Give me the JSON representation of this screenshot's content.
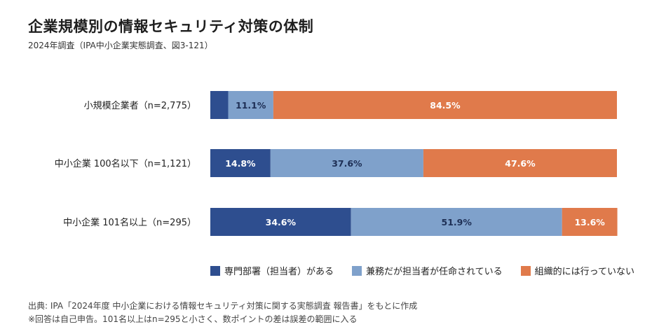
{
  "title": "企業規模別の情報セキュリティ対策の体制",
  "subtitle": "2024年調査（IPA中小企業実態調査、図3-121）",
  "colors": {
    "dedicated": "#2e4e8f",
    "concurrent": "#7fa1cb",
    "none": "#e07a4b"
  },
  "chart_data": {
    "type": "bar",
    "orientation": "horizontal-stacked-100",
    "categories": [
      "小規模企業者（n=2,775）",
      "中小企業 100名以下（n=1,121）",
      "中小企業 101名以上（n=295）"
    ],
    "series": [
      {
        "name": "専門部署（担当者）がある",
        "values": [
          4.4,
          14.8,
          34.6
        ],
        "labels": [
          "",
          "14.8%",
          "34.6%"
        ]
      },
      {
        "name": "兼務だが担当者が任命されている",
        "values": [
          11.1,
          37.6,
          51.9
        ],
        "labels": [
          "11.1%",
          "37.6%",
          "51.9%"
        ]
      },
      {
        "name": "組織的には行っていない",
        "values": [
          84.5,
          47.6,
          13.6
        ],
        "labels": [
          "84.5%",
          "47.6%",
          "13.6%"
        ]
      }
    ],
    "xlim": [
      0,
      100
    ],
    "legend_position": "bottom"
  },
  "footer": {
    "line1": "出典: IPA「2024年度 中小企業における情報セキュリティ対策に関する実態調査 報告書」をもとに作成",
    "line2": "※回答は自己申告。101名以上はn=295と小さく、数ポイントの差は誤差の範囲に入る"
  }
}
